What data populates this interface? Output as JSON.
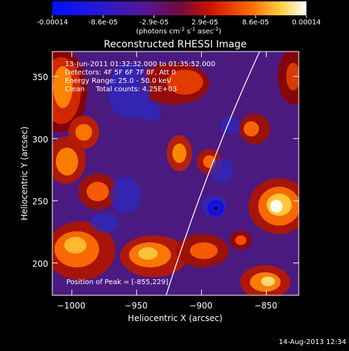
{
  "colorbar": {
    "ticks": [
      "-0.00014",
      "-8.6e-05",
      "-2.9e-05",
      "2.9e-05",
      "8.6e-05",
      "0.00014"
    ],
    "units_main": "(photons cm",
    "units_exp1": "-2",
    "units_mid": " s",
    "units_exp2": "-1",
    "units_tail": " asec",
    "units_exp3": "-2",
    "units_close": ")"
  },
  "chart_data": {
    "type": "heatmap",
    "title": "Reconstructed RHESSI Image",
    "xlabel": "Heliocentric X (arcsec)",
    "ylabel": "Heliocentric Y (arcsec)",
    "xlim": [
      -1015,
      -825
    ],
    "ylim": [
      174,
      370
    ],
    "xticks": [
      -1000,
      -950,
      -900,
      -850
    ],
    "yticks": [
      200,
      250,
      300,
      350
    ],
    "xtick_labels": [
      "−1000",
      "−950",
      "−900",
      "−850"
    ],
    "ytick_labels": [
      "200",
      "250",
      "300",
      "350"
    ],
    "color_range": [
      -0.00014,
      0.00014
    ],
    "colormap": "blue-purple-red-orange-yellow-white",
    "peak": [
      -855,
      229
    ],
    "marker": [
      -889,
      244
    ],
    "info_lines": [
      "13-Jun-2011 01:32:32.000 to 01:35:52.000",
      "Detectors: 4F 5F 6F 7F 8F, Att 0",
      "Energy Range: 25.0 - 50.0 keV",
      "Clean     Total counts: 4.25E+03"
    ],
    "peak_label": "Position of Peak = [-855,229]"
  },
  "timestamp": "14-Aug-2013 12:34"
}
